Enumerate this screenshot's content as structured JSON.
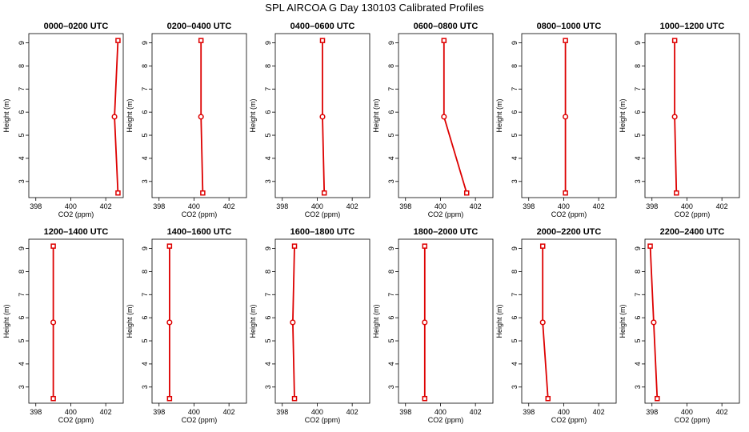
{
  "chart_data": {
    "type": "line",
    "title": "SPL AIRCOA G  Day 130103  Calibrated Profiles",
    "xlabel": "CO2 (ppm)",
    "ylabel": "Height (m)",
    "xlim": [
      397.6,
      403.0
    ],
    "ylim": [
      2.3,
      9.4
    ],
    "xticks": [
      398,
      400,
      402
    ],
    "yticks": [
      3,
      4,
      5,
      6,
      7,
      8,
      9
    ],
    "heights": [
      9.1,
      5.8,
      2.5
    ],
    "colors": {
      "line": "#dd0000",
      "axis": "#000000"
    },
    "panels": [
      {
        "title": "0000–0200 UTC",
        "values": [
          402.7,
          402.5,
          402.7
        ]
      },
      {
        "title": "0200–0400 UTC",
        "values": [
          400.4,
          400.4,
          400.5
        ]
      },
      {
        "title": "0400–0600 UTC",
        "values": [
          400.3,
          400.3,
          400.4
        ]
      },
      {
        "title": "0600–0800 UTC",
        "values": [
          400.2,
          400.2,
          401.5
        ]
      },
      {
        "title": "0800–1000 UTC",
        "values": [
          400.1,
          400.1,
          400.1
        ]
      },
      {
        "title": "1000–1200 UTC",
        "values": [
          399.3,
          399.3,
          399.4
        ]
      },
      {
        "title": "1200–1400 UTC",
        "values": [
          399.0,
          399.0,
          399.0
        ]
      },
      {
        "title": "1400–1600 UTC",
        "values": [
          398.6,
          398.6,
          398.6
        ]
      },
      {
        "title": "1600–1800 UTC",
        "values": [
          398.7,
          398.6,
          398.7
        ]
      },
      {
        "title": "1800–2000 UTC",
        "values": [
          399.1,
          399.1,
          399.1
        ]
      },
      {
        "title": "2000–2200 UTC",
        "values": [
          398.8,
          398.8,
          399.1
        ]
      },
      {
        "title": "2200–2400 UTC",
        "values": [
          397.9,
          398.1,
          398.3
        ]
      }
    ]
  }
}
